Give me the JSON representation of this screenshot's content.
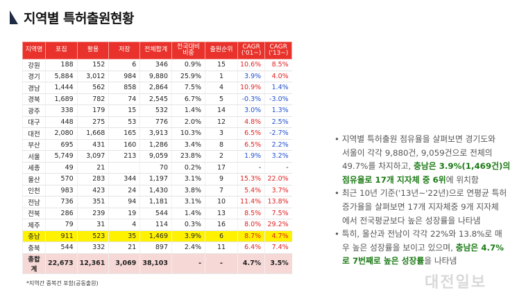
{
  "title": "지역별 특허출원현황",
  "table": {
    "headers": [
      "지역명",
      "포집",
      "활용",
      "저장",
      "전체합계",
      "전국대비\n비중",
      "출원순위",
      "CAGR\n('01~)",
      "CAGR\n('13~)"
    ],
    "rows": [
      {
        "region": "강원",
        "v1": "188",
        "v2": "152",
        "v3": "6",
        "total": "346",
        "share": "0.9%",
        "rank": "15",
        "c1": "10.6%",
        "c1c": "red",
        "c2": "8.5%",
        "c2c": "red",
        "hl": false
      },
      {
        "region": "경기",
        "v1": "5,884",
        "v2": "3,012",
        "v3": "984",
        "total": "9,880",
        "share": "25.9%",
        "rank": "1",
        "c1": "3.9%",
        "c1c": "blue",
        "c2": "4.0%",
        "c2c": "red",
        "hl": false
      },
      {
        "region": "경남",
        "v1": "1,444",
        "v2": "562",
        "v3": "858",
        "total": "2,864",
        "share": "7.5%",
        "rank": "4",
        "c1": "10.9%",
        "c1c": "red",
        "c2": "1.4%",
        "c2c": "blue",
        "hl": false
      },
      {
        "region": "경북",
        "v1": "1,689",
        "v2": "782",
        "v3": "74",
        "total": "2,545",
        "share": "6.7%",
        "rank": "5",
        "c1": "-0.3%",
        "c1c": "blue",
        "c2": "-3.0%",
        "c2c": "blue",
        "hl": false
      },
      {
        "region": "광주",
        "v1": "338",
        "v2": "179",
        "v3": "15",
        "total": "532",
        "share": "1.4%",
        "rank": "14",
        "c1": "3.0%",
        "c1c": "blue",
        "c2": "1.3%",
        "c2c": "blue",
        "hl": false
      },
      {
        "region": "대구",
        "v1": "448",
        "v2": "275",
        "v3": "53",
        "total": "776",
        "share": "2.0%",
        "rank": "12",
        "c1": "4.8%",
        "c1c": "red",
        "c2": "2.5%",
        "c2c": "blue",
        "hl": false
      },
      {
        "region": "대전",
        "v1": "2,080",
        "v2": "1,668",
        "v3": "165",
        "total": "3,913",
        "share": "10.3%",
        "rank": "3",
        "c1": "6.5%",
        "c1c": "red",
        "c2": "-2.7%",
        "c2c": "blue",
        "hl": false
      },
      {
        "region": "부산",
        "v1": "695",
        "v2": "431",
        "v3": "160",
        "total": "1,286",
        "share": "3.4%",
        "rank": "8",
        "c1": "6.5%",
        "c1c": "red",
        "c2": "2.2%",
        "c2c": "blue",
        "hl": false
      },
      {
        "region": "서울",
        "v1": "5,749",
        "v2": "3,097",
        "v3": "213",
        "total": "9,059",
        "share": "23.8%",
        "rank": "2",
        "c1": "1.9%",
        "c1c": "blue",
        "c2": "3.2%",
        "c2c": "blue",
        "hl": false
      },
      {
        "region": "세종",
        "v1": "49",
        "v2": "21",
        "v3": "",
        "total": "70",
        "share": "0.2%",
        "rank": "17",
        "c1": "-",
        "c1c": "",
        "c2": "-",
        "c2c": "",
        "hl": false
      },
      {
        "region": "울산",
        "v1": "570",
        "v2": "283",
        "v3": "344",
        "total": "1,197",
        "share": "3.1%",
        "rank": "9",
        "c1": "15.3%",
        "c1c": "red",
        "c2": "22.0%",
        "c2c": "red",
        "hl": false
      },
      {
        "region": "인천",
        "v1": "983",
        "v2": "423",
        "v3": "24",
        "total": "1,430",
        "share": "3.8%",
        "rank": "7",
        "c1": "5.4%",
        "c1c": "red",
        "c2": "3.7%",
        "c2c": "red",
        "hl": false
      },
      {
        "region": "전남",
        "v1": "736",
        "v2": "351",
        "v3": "94",
        "total": "1,181",
        "share": "3.1%",
        "rank": "10",
        "c1": "11.4%",
        "c1c": "red",
        "c2": "13.8%",
        "c2c": "red",
        "hl": false
      },
      {
        "region": "전북",
        "v1": "286",
        "v2": "239",
        "v3": "19",
        "total": "544",
        "share": "1.4%",
        "rank": "13",
        "c1": "8.5%",
        "c1c": "red",
        "c2": "7.5%",
        "c2c": "red",
        "hl": false
      },
      {
        "region": "제주",
        "v1": "79",
        "v2": "31",
        "v3": "4",
        "total": "114",
        "share": "0.3%",
        "rank": "16",
        "c1": "8.0%",
        "c1c": "red",
        "c2": "29.2%",
        "c2c": "red",
        "hl": false
      },
      {
        "region": "충남",
        "v1": "911",
        "v2": "523",
        "v3": "35",
        "total": "1,469",
        "share": "3.9%",
        "rank": "6",
        "c1": "8.7%",
        "c1c": "red",
        "c2": "4.7%",
        "c2c": "red",
        "hl": true
      },
      {
        "region": "충북",
        "v1": "544",
        "v2": "332",
        "v3": "21",
        "total": "897",
        "share": "2.4%",
        "rank": "11",
        "c1": "6.4%",
        "c1c": "red",
        "c2": "7.4%",
        "c2c": "red",
        "hl": false
      }
    ],
    "total_row": {
      "region": "총합계",
      "v1": "22,673",
      "v2": "12,361",
      "v3": "3,069",
      "total": "38,103",
      "share": "-",
      "rank": "-",
      "c1": "4.7%",
      "c2": "3.5%"
    }
  },
  "note": "*지역간 중복건 포함(공동출원)",
  "bullets": [
    {
      "segments": [
        {
          "t": "• 지역별 특허출원 점유율을 살펴보면 경기도와",
          "b": false
        }
      ],
      "indent": false
    },
    {
      "segments": [
        {
          "t": "서울이 각각 9,880건, 9,059건으로 전체의",
          "b": false
        }
      ],
      "indent": true
    },
    {
      "segments": [
        {
          "t": "49.7%를 차지하고, ",
          "b": false
        },
        {
          "t": "충남은 3.9%(1,469건)의",
          "b": true
        }
      ],
      "indent": true
    },
    {
      "segments": [
        {
          "t": "점유율로 17개 지자체 중 6위",
          "b": true
        },
        {
          "t": "에 위치함",
          "b": false
        }
      ],
      "indent": true
    },
    {
      "segments": [
        {
          "t": "• 최근 10년 기준('13년~'22년)으로 연평균 특허",
          "b": false
        }
      ],
      "indent": false
    },
    {
      "segments": [
        {
          "t": "증가율을 살펴보면 17개 지자체중 9개 지자체",
          "b": false
        }
      ],
      "indent": true
    },
    {
      "segments": [
        {
          "t": "에서 전국평균보다 높은 성장률을 나타냄",
          "b": false
        }
      ],
      "indent": true
    },
    {
      "segments": [
        {
          "t": "• 특히, 울산과 전남이 각각 22%와 13.8%로 매",
          "b": false
        }
      ],
      "indent": false
    },
    {
      "segments": [
        {
          "t": "우 높은 성장률을 보이고 있으며, ",
          "b": false
        },
        {
          "t": "충남은 4.7%",
          "b": true
        }
      ],
      "indent": true
    },
    {
      "segments": [
        {
          "t": "로 7번째로 높은 성장률",
          "b": true
        },
        {
          "t": "을 나타냄",
          "b": false
        }
      ],
      "indent": true
    }
  ],
  "watermark": "대전일보"
}
